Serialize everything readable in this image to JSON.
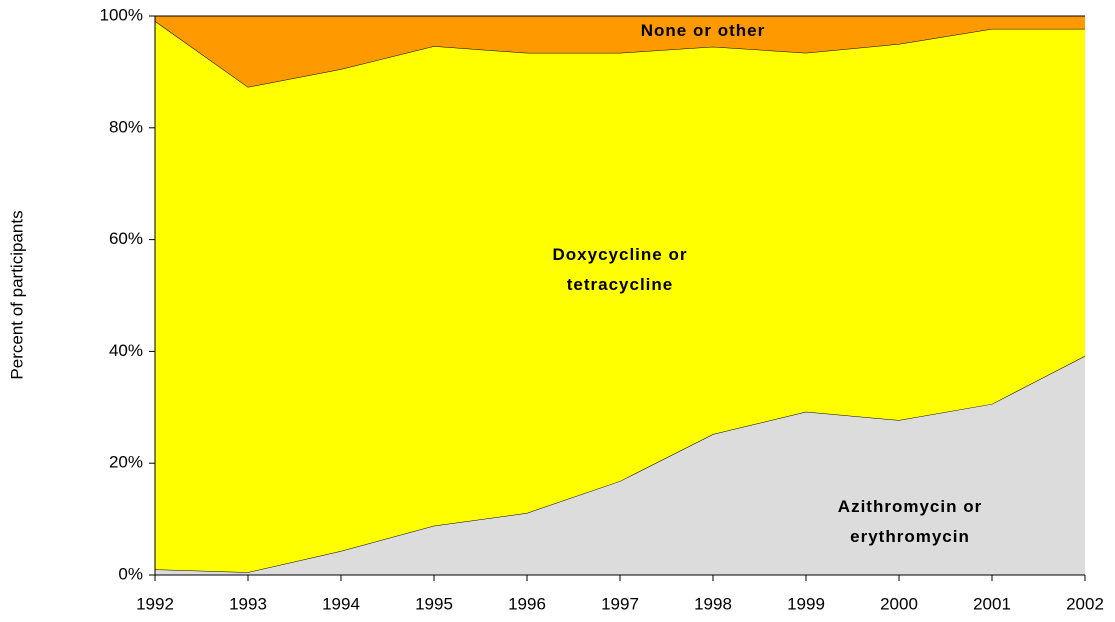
{
  "chart_data": {
    "type": "stacked-area",
    "y_label": "Percent of participants",
    "categories": [
      "1992",
      "1993",
      "1994",
      "1995",
      "1996",
      "1997",
      "1998",
      "1999",
      "2000",
      "2001",
      "2002"
    ],
    "series": [
      {
        "name": "Azithromycin or erythromycin",
        "color": "#dcdcdc",
        "values": [
          1.0,
          0.5,
          4.3,
          8.8,
          11.1,
          16.8,
          25.2,
          29.2,
          27.7,
          30.6,
          39.2
        ]
      },
      {
        "name": "Doxycycline or tetracycline",
        "color": "#ffff00",
        "values": [
          98.1,
          86.8,
          86.2,
          85.8,
          82.3,
          76.6,
          69.3,
          64.2,
          67.3,
          67.1,
          58.5
        ]
      },
      {
        "name": "None or other",
        "color": "#ff9900",
        "values": [
          0.9,
          12.7,
          9.5,
          5.4,
          6.6,
          6.6,
          5.5,
          6.6,
          5.0,
          2.3,
          2.3
        ]
      }
    ],
    "ylim": [
      0,
      100
    ],
    "yticks": [
      {
        "value": 0,
        "label": "0%"
      },
      {
        "value": 20,
        "label": "20%"
      },
      {
        "value": 40,
        "label": "40%"
      },
      {
        "value": 60,
        "label": "60%"
      },
      {
        "value": 80,
        "label": "80%"
      },
      {
        "value": 100,
        "label": "100%"
      }
    ]
  }
}
